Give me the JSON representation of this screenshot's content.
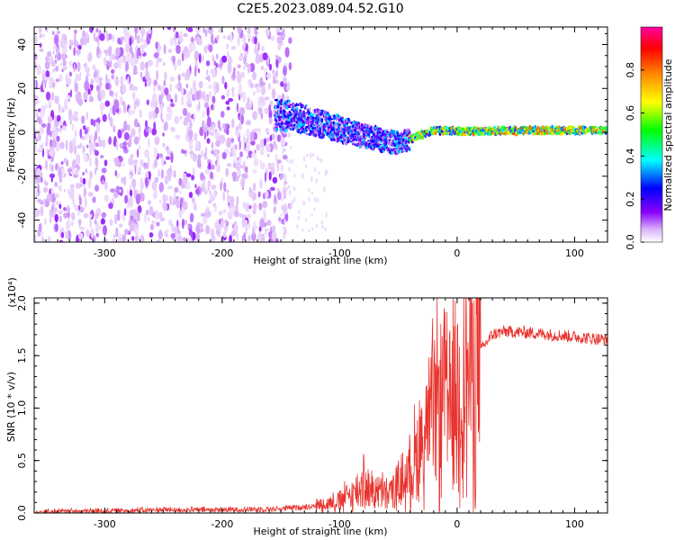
{
  "title": "C2E5.2023.089.04.52.G10",
  "colors": {
    "snr_line": "#e8332e",
    "axis": "#000000"
  },
  "chart_data": [
    {
      "type": "heatmap",
      "xlabel": "Height of straight line (km)",
      "ylabel": "Frequency (Hz)",
      "xlim": [
        -360,
        128
      ],
      "ylim": [
        -50,
        48
      ],
      "xticks": [
        -300,
        -200,
        -100,
        0,
        100
      ],
      "yticks": [
        -40,
        -20,
        0,
        20,
        40
      ],
      "colorbar": {
        "label": "Normalized spectral amplitude",
        "range": [
          0,
          1
        ],
        "ticks": [
          "0.0",
          "0.2",
          "0.4",
          "0.6",
          "0.8"
        ],
        "colormap": [
          "#ffffff",
          "#d8b0f8",
          "#8800ff",
          "#0000ff",
          "#00ffff",
          "#00ff00",
          "#ffff00",
          "#ff8800",
          "#ff0000",
          "#ff00a0"
        ]
      },
      "trace": {
        "x": [
          -150,
          -130,
          -110,
          -90,
          -75,
          -60,
          -50,
          -40,
          -30,
          -20,
          0,
          20,
          60,
          100,
          128
        ],
        "y": [
          8,
          6,
          3,
          0,
          -2,
          -4,
          -5,
          -3,
          -1,
          1,
          0.5,
          0.5,
          0.8,
          1,
          1
        ]
      },
      "noise_region": {
        "x": [
          -360,
          -150
        ],
        "y": [
          -50,
          48
        ]
      }
    },
    {
      "type": "line",
      "xlabel": "Height of straight line (km)",
      "ylabel": "SNR (10 * v/v)",
      "y_multiplier": "(x10⁴)",
      "xlim": [
        -360,
        128
      ],
      "ylim": [
        0,
        2.05
      ],
      "xticks": [
        -300,
        -200,
        -100,
        0,
        100
      ],
      "yticks": [
        "0.0",
        "0.5",
        "1.0",
        "1.5",
        "2.0"
      ],
      "series": [
        {
          "x": [
            -360,
            -300,
            -250,
            -200,
            -150,
            -120,
            -100,
            -90,
            -80,
            -70,
            -60,
            -50,
            -40,
            -30,
            -20,
            -10,
            0,
            10,
            20,
            30,
            40,
            60,
            80,
            100,
            128
          ],
          "values": [
            0.01,
            0.02,
            0.03,
            0.03,
            0.04,
            0.07,
            0.12,
            0.18,
            0.25,
            0.22,
            0.18,
            0.25,
            0.4,
            0.7,
            0.95,
            1.05,
            1.2,
            1.35,
            1.55,
            1.7,
            1.73,
            1.72,
            1.7,
            1.68,
            1.65
          ]
        }
      ]
    }
  ]
}
